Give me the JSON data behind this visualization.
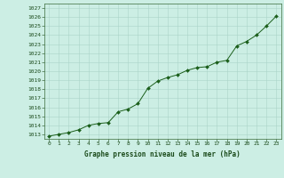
{
  "x": [
    0,
    1,
    2,
    3,
    4,
    5,
    6,
    7,
    8,
    9,
    10,
    11,
    12,
    13,
    14,
    15,
    16,
    17,
    18,
    19,
    20,
    21,
    22,
    23
  ],
  "y": [
    1012.8,
    1013.0,
    1013.2,
    1013.5,
    1014.0,
    1014.2,
    1014.3,
    1015.5,
    1015.8,
    1016.4,
    1018.1,
    1018.9,
    1019.3,
    1019.6,
    1020.1,
    1020.4,
    1020.5,
    1021.0,
    1021.2,
    1022.8,
    1023.3,
    1024.0,
    1025.0,
    1026.1
  ],
  "line_color": "#1a5e1a",
  "marker_color": "#1a5e1a",
  "bg_color": "#cceee4",
  "grid_color": "#aad4c8",
  "text_color": "#1a4a1a",
  "title": "Graphe pression niveau de la mer (hPa)",
  "ylim_min": 1012.5,
  "ylim_max": 1027.5,
  "xlim_min": -0.5,
  "xlim_max": 23.5,
  "yticks": [
    1013,
    1014,
    1015,
    1016,
    1017,
    1018,
    1019,
    1020,
    1021,
    1022,
    1023,
    1024,
    1025,
    1026,
    1027
  ],
  "xticks": [
    0,
    1,
    2,
    3,
    4,
    5,
    6,
    7,
    8,
    9,
    10,
    11,
    12,
    13,
    14,
    15,
    16,
    17,
    18,
    19,
    20,
    21,
    22,
    23
  ]
}
